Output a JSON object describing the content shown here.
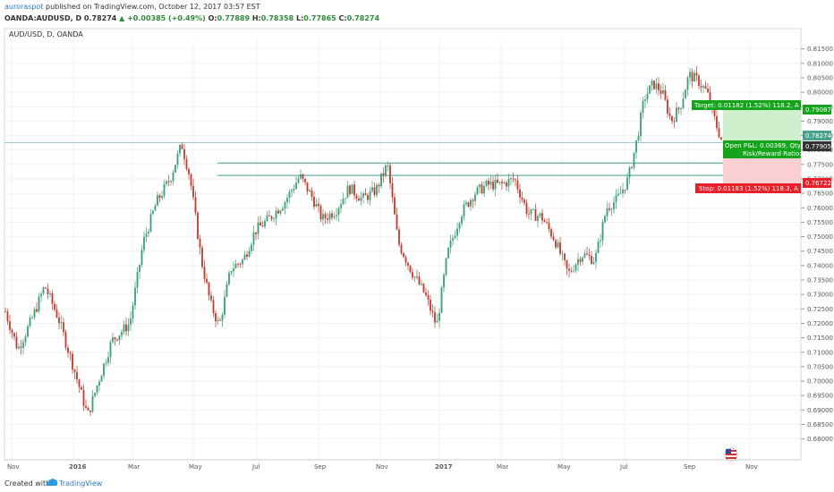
{
  "header": {
    "author": "auroraspot",
    "published_text": " published on TradingView.com, October 12, 2017 03:57 EST",
    "symbol": "OANDA:AUDUSD, D",
    "last": "0.78274",
    "change": "+0.00385 (+0.49%)",
    "o_label": "O:",
    "o_value": "0.77889",
    "h_label": "H:",
    "h_value": "0.78358",
    "l_label": "L:",
    "l_value": "0.77865",
    "c_label": "C:",
    "c_value": "0.78274"
  },
  "chart": {
    "symbol_label": "AUD/USD, D, OANDA",
    "price_ticks": [
      "0.81500",
      "0.81000",
      "0.80500",
      "0.80000",
      "0.79500",
      "0.79000",
      "0.78500",
      "0.78000",
      "0.77500",
      "0.77000",
      "0.76500",
      "0.76000",
      "0.75500",
      "0.75000",
      "0.74500",
      "0.74000",
      "0.73500",
      "0.73000",
      "0.72500",
      "0.72000",
      "0.71500",
      "0.71000",
      "0.70500",
      "0.70000",
      "0.69500",
      "0.69000",
      "0.68500",
      "0.68000"
    ],
    "time_ticks": [
      "Nov",
      "2016",
      "Mar",
      "May",
      "Jul",
      "Sep",
      "Nov",
      "2017",
      "Mar",
      "May",
      "Jul",
      "Sep",
      "Nov"
    ],
    "price_range": [
      0.6768,
      0.8183
    ],
    "last_price_tag": "0.78274",
    "target_tag": "0.79087",
    "entry_tag": "0.77905",
    "stop_tag": "0.76722",
    "target_box_text": "Target: 0.01182 (1.52%) 118.2, A",
    "stop_box_text": "Stop: 0.01183 (1.52%) 118.3, A",
    "pnl_text": "Open P&L: 0.00369, Qty",
    "rr_text": "Risk/Reward Ratio:",
    "horizontal_lines": [
      0.7825,
      0.7755,
      0.7712
    ],
    "colors": {
      "bull": "#3a9e78",
      "bear": "#c0392b",
      "target": "#14a31b",
      "stop": "#e8202a",
      "line": "#3d9c8b"
    }
  },
  "footer": {
    "created_with": "Created with",
    "brand": "TradingView"
  }
}
